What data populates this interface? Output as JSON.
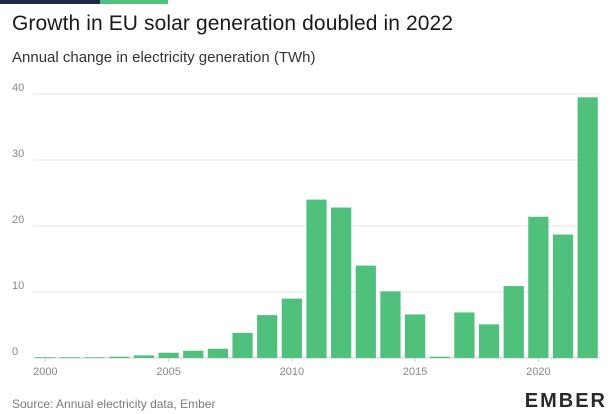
{
  "header": {
    "title": "Growth in EU solar generation doubled in 2022",
    "subtitle": "Annual change in electricity generation (TWh)"
  },
  "footer": {
    "source": "Source: Annual electricity data, Ember",
    "logo_text": "EMBER"
  },
  "colors": {
    "bar": "#4fc17c",
    "accent_dark": "#1f2a44",
    "accent_green": "#4fc17c",
    "grid": "#e6e6e6",
    "tick_text": "#888888"
  },
  "chart_data": {
    "type": "bar",
    "title": "Growth in EU solar generation doubled in 2022",
    "subtitle": "Annual change in electricity generation (TWh)",
    "xlabel": "",
    "ylabel": "",
    "categories": [
      2000,
      2001,
      2002,
      2003,
      2004,
      2005,
      2006,
      2007,
      2008,
      2009,
      2010,
      2011,
      2012,
      2013,
      2014,
      2015,
      2016,
      2017,
      2018,
      2019,
      2020,
      2021,
      2022
    ],
    "values": [
      0.05,
      0.1,
      0.1,
      0.2,
      0.4,
      0.8,
      1.1,
      1.4,
      3.8,
      6.5,
      9.0,
      24.0,
      22.8,
      14.0,
      10.1,
      6.6,
      0.2,
      6.9,
      5.1,
      10.9,
      21.4,
      18.7,
      39.5
    ],
    "ylim": [
      0,
      40
    ],
    "yticks": [
      0,
      10,
      20,
      30,
      40
    ],
    "xtick_labels": [
      "2000",
      "2005",
      "2010",
      "2015",
      "2020"
    ],
    "grid": true,
    "legend": "none"
  }
}
